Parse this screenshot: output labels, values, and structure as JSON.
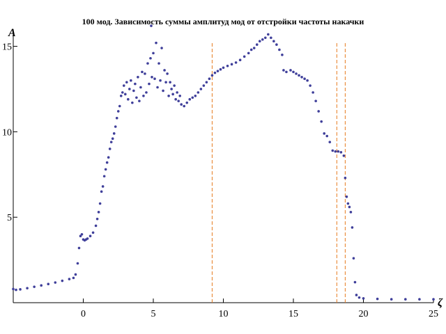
{
  "title": "100 мод. Зависимость суммы амплитуд мод от отстройки частоты накачки",
  "chart_data": {
    "type": "scatter",
    "title": "100 мод. Зависимость суммы амплитуд мод от отстройки частоты накачки",
    "xlabel": "ζ",
    "ylabel": "A",
    "xlim": [
      -5,
      25
    ],
    "ylim": [
      0,
      16
    ],
    "x_ticks": [
      0,
      5,
      10,
      15,
      20,
      25
    ],
    "y_ticks": [
      5,
      10,
      15
    ],
    "vertical_lines": {
      "style": "dashed",
      "color": "#e77a1d",
      "x": [
        9.2,
        18.1,
        18.7
      ]
    },
    "series_color": "#3f3f9a",
    "points": [
      [
        -5.0,
        0.8
      ],
      [
        -4.8,
        0.75
      ],
      [
        -4.5,
        0.78
      ],
      [
        -4.0,
        0.85
      ],
      [
        -3.5,
        0.93
      ],
      [
        -3.0,
        1.01
      ],
      [
        -2.5,
        1.09
      ],
      [
        -2.0,
        1.18
      ],
      [
        -1.5,
        1.28
      ],
      [
        -1.0,
        1.38
      ],
      [
        -0.7,
        1.45
      ],
      [
        -0.55,
        1.65
      ],
      [
        -0.4,
        2.3
      ],
      [
        -0.3,
        3.2
      ],
      [
        -0.2,
        3.9
      ],
      [
        -0.1,
        4.0
      ],
      [
        0.0,
        3.7
      ],
      [
        0.1,
        3.65
      ],
      [
        0.2,
        3.7
      ],
      [
        0.3,
        3.75
      ],
      [
        0.5,
        3.9
      ],
      [
        0.7,
        4.1
      ],
      [
        0.9,
        4.5
      ],
      [
        1.0,
        4.9
      ],
      [
        1.1,
        5.3
      ],
      [
        1.2,
        5.8
      ],
      [
        1.3,
        6.5
      ],
      [
        1.4,
        6.8
      ],
      [
        1.5,
        7.4
      ],
      [
        1.6,
        7.8
      ],
      [
        1.7,
        8.2
      ],
      [
        1.8,
        8.5
      ],
      [
        1.9,
        9.0
      ],
      [
        2.0,
        9.4
      ],
      [
        2.1,
        9.6
      ],
      [
        2.2,
        9.9
      ],
      [
        2.3,
        10.3
      ],
      [
        2.4,
        10.8
      ],
      [
        2.5,
        11.2
      ],
      [
        2.6,
        11.5
      ],
      [
        2.7,
        12.1
      ],
      [
        2.8,
        12.3
      ],
      [
        2.9,
        12.7
      ],
      [
        3.0,
        12.2
      ],
      [
        3.1,
        12.9
      ],
      [
        3.2,
        11.9
      ],
      [
        3.3,
        12.5
      ],
      [
        3.4,
        13.0
      ],
      [
        3.5,
        11.7
      ],
      [
        3.6,
        12.4
      ],
      [
        3.7,
        12.8
      ],
      [
        3.8,
        12.0
      ],
      [
        3.9,
        13.2
      ],
      [
        4.0,
        11.8
      ],
      [
        4.1,
        12.6
      ],
      [
        4.2,
        13.5
      ],
      [
        4.3,
        12.1
      ],
      [
        4.4,
        13.4
      ],
      [
        4.5,
        12.3
      ],
      [
        4.6,
        14.0
      ],
      [
        4.7,
        12.8
      ],
      [
        4.8,
        14.3
      ],
      [
        4.85,
        16.2
      ],
      [
        4.9,
        13.2
      ],
      [
        5.0,
        14.6
      ],
      [
        5.1,
        13.1
      ],
      [
        5.2,
        15.2
      ],
      [
        5.3,
        12.6
      ],
      [
        5.4,
        14.0
      ],
      [
        5.5,
        13.0
      ],
      [
        5.6,
        14.9
      ],
      [
        5.7,
        12.4
      ],
      [
        5.8,
        13.6
      ],
      [
        5.9,
        12.9
      ],
      [
        6.0,
        13.4
      ],
      [
        6.1,
        12.1
      ],
      [
        6.2,
        12.9
      ],
      [
        6.3,
        12.5
      ],
      [
        6.4,
        12.2
      ],
      [
        6.5,
        12.7
      ],
      [
        6.6,
        11.9
      ],
      [
        6.7,
        12.3
      ],
      [
        6.8,
        11.8
      ],
      [
        6.9,
        12.1
      ],
      [
        7.0,
        11.6
      ],
      [
        7.2,
        11.5
      ],
      [
        7.4,
        11.7
      ],
      [
        7.6,
        11.9
      ],
      [
        7.8,
        12.0
      ],
      [
        8.0,
        12.1
      ],
      [
        8.2,
        12.3
      ],
      [
        8.4,
        12.5
      ],
      [
        8.6,
        12.7
      ],
      [
        8.8,
        12.9
      ],
      [
        9.0,
        13.1
      ],
      [
        9.2,
        13.3
      ],
      [
        9.4,
        13.45
      ],
      [
        9.6,
        13.55
      ],
      [
        9.8,
        13.65
      ],
      [
        10.0,
        13.75
      ],
      [
        10.3,
        13.85
      ],
      [
        10.6,
        13.95
      ],
      [
        10.9,
        14.05
      ],
      [
        11.2,
        14.2
      ],
      [
        11.5,
        14.4
      ],
      [
        11.8,
        14.6
      ],
      [
        12.0,
        14.8
      ],
      [
        12.2,
        14.9
      ],
      [
        12.4,
        15.1
      ],
      [
        12.6,
        15.3
      ],
      [
        12.8,
        15.4
      ],
      [
        13.0,
        15.5
      ],
      [
        13.2,
        15.7
      ],
      [
        13.4,
        15.5
      ],
      [
        13.6,
        15.3
      ],
      [
        13.8,
        15.1
      ],
      [
        14.0,
        14.8
      ],
      [
        14.2,
        14.5
      ],
      [
        14.3,
        13.6
      ],
      [
        14.5,
        13.5
      ],
      [
        14.8,
        13.6
      ],
      [
        15.0,
        13.5
      ],
      [
        15.2,
        13.4
      ],
      [
        15.4,
        13.3
      ],
      [
        15.6,
        13.2
      ],
      [
        15.8,
        13.1
      ],
      [
        16.0,
        13.0
      ],
      [
        16.2,
        12.7
      ],
      [
        16.4,
        12.3
      ],
      [
        16.6,
        11.8
      ],
      [
        16.8,
        11.2
      ],
      [
        17.0,
        10.6
      ],
      [
        17.2,
        9.9
      ],
      [
        17.4,
        9.75
      ],
      [
        17.6,
        9.4
      ],
      [
        17.8,
        8.9
      ],
      [
        18.0,
        8.85
      ],
      [
        18.2,
        8.85
      ],
      [
        18.4,
        8.8
      ],
      [
        18.6,
        8.6
      ],
      [
        18.7,
        7.3
      ],
      [
        18.8,
        6.2
      ],
      [
        18.9,
        5.8
      ],
      [
        19.0,
        5.6
      ],
      [
        19.1,
        5.3
      ],
      [
        19.2,
        4.4
      ],
      [
        19.3,
        2.6
      ],
      [
        19.4,
        1.2
      ],
      [
        19.5,
        0.45
      ],
      [
        19.7,
        0.3
      ],
      [
        20.0,
        0.25
      ],
      [
        21.0,
        0.22
      ],
      [
        22.0,
        0.2
      ],
      [
        23.0,
        0.2
      ],
      [
        24.0,
        0.2
      ],
      [
        25.0,
        0.2
      ]
    ]
  }
}
